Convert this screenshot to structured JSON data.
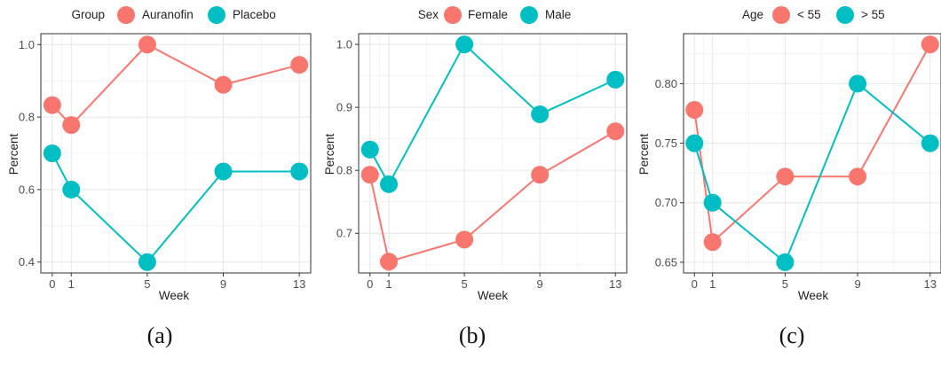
{
  "chart_data": [
    {
      "type": "line",
      "panel_caption": "(a)",
      "legend_title": "Group",
      "legend_position": "top",
      "xlabel": "Week",
      "ylabel": "Percent",
      "x": [
        0,
        1,
        5,
        9,
        13
      ],
      "x_ticks": [
        0,
        1,
        5,
        9,
        13
      ],
      "y_ticks": [
        0.4,
        0.6,
        0.8,
        1.0
      ],
      "y_tick_labels": [
        "0.4",
        "0.6",
        "0.8",
        "1.0"
      ],
      "xlim": [
        -0.6,
        13.6
      ],
      "ylim": [
        0.37,
        1.03
      ],
      "grid": true,
      "series": [
        {
          "name": "Auranofin",
          "color": "#F8766D",
          "values": [
            0.833,
            0.778,
            1.0,
            0.889,
            0.944
          ]
        },
        {
          "name": "Placebo",
          "color": "#00BFC4",
          "values": [
            0.7,
            0.6,
            0.4,
            0.65,
            0.65
          ]
        }
      ]
    },
    {
      "type": "line",
      "panel_caption": "(b)",
      "legend_title": "Sex",
      "legend_position": "top",
      "xlabel": "Week",
      "ylabel": "Percent",
      "x": [
        0,
        1,
        5,
        9,
        13
      ],
      "x_ticks": [
        0,
        1,
        5,
        9,
        13
      ],
      "y_ticks": [
        0.7,
        0.8,
        0.9,
        1.0
      ],
      "y_tick_labels": [
        "0.7",
        "0.8",
        "0.9",
        "1.0"
      ],
      "xlim": [
        -0.6,
        13.6
      ],
      "ylim": [
        0.637,
        1.017
      ],
      "grid": true,
      "series": [
        {
          "name": "Female",
          "color": "#F8766D",
          "values": [
            0.793,
            0.655,
            0.69,
            0.793,
            0.862
          ]
        },
        {
          "name": "Male",
          "color": "#00BFC4",
          "values": [
            0.833,
            0.778,
            1.0,
            0.889,
            0.944
          ]
        }
      ]
    },
    {
      "type": "line",
      "panel_caption": "(c)",
      "legend_title": "Age",
      "legend_position": "top",
      "xlabel": "Week",
      "ylabel": "Percent",
      "x": [
        0,
        1,
        5,
        9,
        13
      ],
      "x_ticks": [
        0,
        1,
        5,
        9,
        13
      ],
      "y_ticks": [
        0.65,
        0.7,
        0.75,
        0.8
      ],
      "y_tick_labels": [
        "0.65",
        "0.70",
        "0.75",
        "0.80"
      ],
      "xlim": [
        -0.6,
        13.6
      ],
      "ylim": [
        0.641,
        0.842
      ],
      "grid": true,
      "series": [
        {
          "name": "< 55",
          "color": "#F8766D",
          "values": [
            0.778,
            0.667,
            0.722,
            0.722,
            0.833
          ]
        },
        {
          "name": "> 55",
          "color": "#00BFC4",
          "values": [
            0.75,
            0.7,
            0.65,
            0.8,
            0.75
          ]
        }
      ]
    }
  ]
}
